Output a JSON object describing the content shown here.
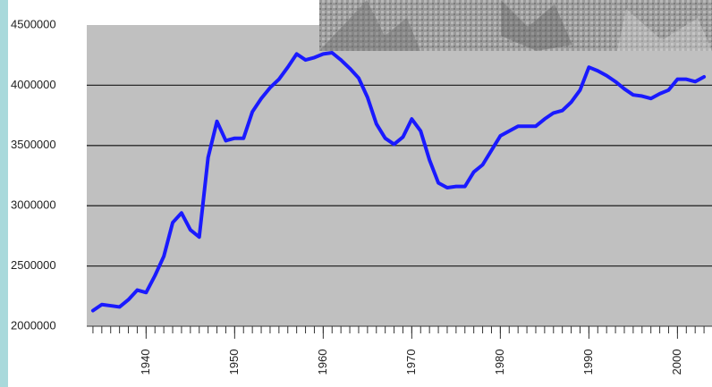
{
  "chart_data": {
    "type": "line",
    "x": [
      1934,
      1935,
      1936,
      1937,
      1938,
      1939,
      1940,
      1941,
      1942,
      1943,
      1944,
      1945,
      1946,
      1947,
      1948,
      1949,
      1950,
      1951,
      1952,
      1953,
      1954,
      1955,
      1956,
      1957,
      1958,
      1959,
      1960,
      1961,
      1962,
      1963,
      1964,
      1965,
      1966,
      1967,
      1968,
      1969,
      1970,
      1971,
      1972,
      1973,
      1974,
      1975,
      1976,
      1977,
      1978,
      1979,
      1980,
      1981,
      1982,
      1983,
      1984,
      1985,
      1986,
      1987,
      1988,
      1989,
      1990,
      1991,
      1992,
      1993,
      1994,
      1995,
      1996,
      1997,
      1998,
      1999,
      2000,
      2001,
      2002,
      2003
    ],
    "series": [
      {
        "color": "#1a1aff",
        "values": [
          2130000,
          2180000,
          2170000,
          2160000,
          2220000,
          2300000,
          2280000,
          2420000,
          2580000,
          2860000,
          2940000,
          2800000,
          2740000,
          3400000,
          3700000,
          3540000,
          3560000,
          3560000,
          3780000,
          3890000,
          3980000,
          4050000,
          4150000,
          4260000,
          4210000,
          4230000,
          4260000,
          4270000,
          4210000,
          4140000,
          4060000,
          3900000,
          3680000,
          3560000,
          3510000,
          3570000,
          3720000,
          3620000,
          3380000,
          3190000,
          3150000,
          3160000,
          3160000,
          3280000,
          3340000,
          3460000,
          3580000,
          3620000,
          3660000,
          3660000,
          3660000,
          3720000,
          3770000,
          3790000,
          3860000,
          3960000,
          4150000,
          4120000,
          4080000,
          4030000,
          3970000,
          3920000,
          3910000,
          3890000,
          3930000,
          3960000,
          4050000,
          4050000,
          4030000,
          4070000
        ]
      }
    ],
    "xlim": [
      1933.3,
      2003.9
    ],
    "xticks": [
      1940,
      1950,
      1960,
      1970,
      1980,
      1990,
      2000
    ],
    "xticks_minor": [
      1934,
      1935,
      1936,
      1937,
      1938,
      1939,
      1940,
      1941,
      1942,
      1943,
      1944,
      1945,
      1946,
      1947,
      1948,
      1949,
      1950,
      1951,
      1952,
      1953,
      1954,
      1955,
      1956,
      1957,
      1958,
      1959,
      1960,
      1961,
      1962,
      1963,
      1964,
      1965,
      1966,
      1967,
      1968,
      1969,
      1970,
      1971,
      1972,
      1973,
      1974,
      1975,
      1976,
      1977,
      1978,
      1979,
      1980,
      1981,
      1982,
      1983,
      1984,
      1985,
      1986,
      1987,
      1988,
      1989,
      1990,
      1991,
      1992,
      1993,
      1994,
      1995,
      1996,
      1997,
      1998,
      1999,
      2000,
      2001,
      2002,
      2003
    ],
    "ylim": [
      2000000,
      4500000
    ],
    "yticks": [
      2000000,
      2500000,
      3000000,
      3500000,
      4000000,
      4500000
    ],
    "grid": true
  }
}
